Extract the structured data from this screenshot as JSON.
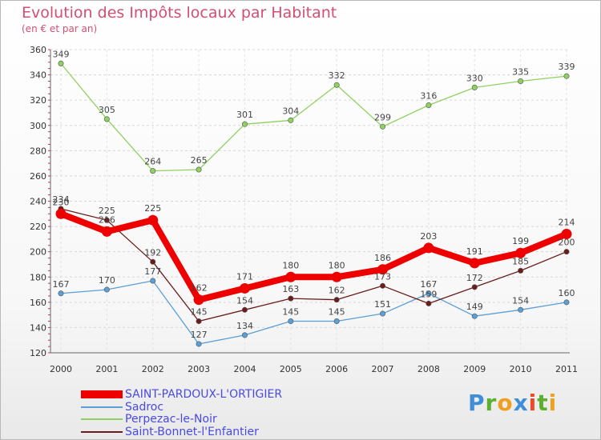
{
  "header": {
    "title": "Evolution des Impôts locaux par Habitant",
    "subtitle": "(en € et par an)"
  },
  "logo": {
    "letters": [
      "P",
      "r",
      "o",
      "x",
      "i",
      "t",
      "i"
    ]
  },
  "chart_data": {
    "type": "line",
    "title": "Evolution des Impôts locaux par Habitant",
    "subtitle": "(en € et par an)",
    "xlabel": "",
    "ylabel": "",
    "ylim": [
      120,
      360
    ],
    "yticks": [
      120,
      140,
      160,
      180,
      200,
      220,
      240,
      260,
      280,
      300,
      320,
      340,
      360
    ],
    "grid": true,
    "legend_position": "bottom-left",
    "x": [
      "2000",
      "2001",
      "2002",
      "2003",
      "2004",
      "2005",
      "2006",
      "2007",
      "2008",
      "2009",
      "2010",
      "2011"
    ],
    "series": [
      {
        "name": "SAINT-PARDOUX-L'ORTIGIER",
        "color": "#ee0000",
        "thick": true,
        "values": [
          230,
          216,
          225,
          162,
          171,
          180,
          180,
          186,
          203,
          191,
          199,
          214
        ]
      },
      {
        "name": "Sadroc",
        "color": "#5a9fd6",
        "thick": false,
        "values": [
          167,
          170,
          177,
          127,
          134,
          145,
          145,
          151,
          167,
          149,
          154,
          160
        ]
      },
      {
        "name": "Perpezac-le-Noir",
        "color": "#8fd160",
        "thick": false,
        "values": [
          349,
          305,
          264,
          265,
          301,
          304,
          332,
          299,
          316,
          330,
          335,
          339
        ]
      },
      {
        "name": "Saint-Bonnet-l'Enfantier",
        "color": "#6b1c1c",
        "thick": false,
        "values": [
          234,
          225,
          192,
          145,
          154,
          163,
          162,
          173,
          159,
          172,
          185,
          200
        ]
      }
    ]
  }
}
